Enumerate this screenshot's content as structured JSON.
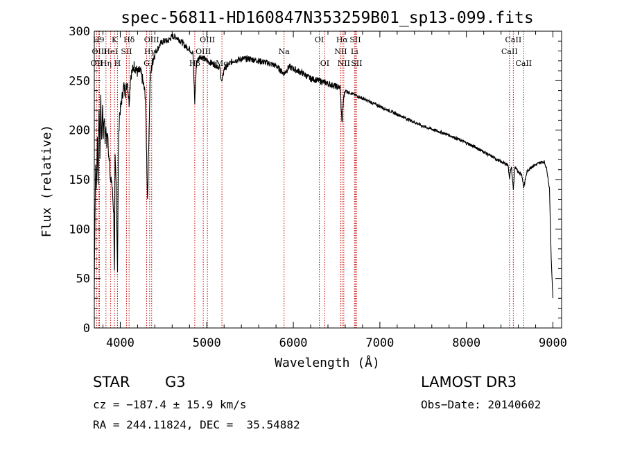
{
  "chart_data": {
    "type": "line",
    "title": "spec-56811-HD160847N353259B01_sp13-099.fits",
    "xlabel": "Wavelength (Å)",
    "ylabel": "Flux (relative)",
    "xlim": [
      3700,
      9100
    ],
    "ylim": [
      0,
      300
    ],
    "xticks": [
      4000,
      5000,
      6000,
      7000,
      8000,
      9000
    ],
    "yticks": [
      0,
      50,
      100,
      150,
      200,
      250,
      300
    ],
    "grid": false,
    "series": [
      {
        "name": "flux",
        "x": [
          3700,
          3705,
          3715,
          3725,
          3735,
          3745,
          3755,
          3765,
          3775,
          3785,
          3795,
          3805,
          3815,
          3825,
          3835,
          3845,
          3855,
          3865,
          3875,
          3889,
          3900,
          3915,
          3925,
          3933,
          3940,
          3955,
          3968,
          3980,
          3990,
          4000,
          4020,
          4040,
          4060,
          4080,
          4102,
          4120,
          4140,
          4160,
          4180,
          4200,
          4230,
          4260,
          4290,
          4305,
          4315,
          4330,
          4345,
          4360,
          4380,
          4400,
          4430,
          4470,
          4500,
          4550,
          4600,
          4650,
          4700,
          4750,
          4800,
          4840,
          4861,
          4880,
          4920,
          4960,
          5000,
          5050,
          5100,
          5150,
          5175,
          5200,
          5300,
          5400,
          5500,
          5600,
          5700,
          5800,
          5893,
          5950,
          6000,
          6100,
          6200,
          6300,
          6400,
          6500,
          6540,
          6563,
          6580,
          6600,
          6700,
          6800,
          6900,
          7000,
          7100,
          7200,
          7300,
          7400,
          7500,
          7600,
          7700,
          7800,
          7900,
          8000,
          8100,
          8200,
          8300,
          8400,
          8480,
          8498,
          8520,
          8542,
          8560,
          8600,
          8640,
          8662,
          8700,
          8750,
          8800,
          8850,
          8880,
          8900,
          8930,
          8960,
          8980,
          9000
        ],
        "y": [
          40,
          90,
          165,
          140,
          190,
          145,
          225,
          175,
          230,
          185,
          225,
          195,
          215,
          190,
          205,
          185,
          200,
          170,
          175,
          145,
          150,
          130,
          115,
          55,
          170,
          140,
          60,
          185,
          215,
          220,
          232,
          245,
          238,
          250,
          228,
          255,
          260,
          265,
          262,
          258,
          260,
          250,
          235,
          175,
          130,
          190,
          250,
          262,
          272,
          278,
          282,
          288,
          290,
          290,
          295,
          294,
          290,
          285,
          282,
          278,
          228,
          268,
          275,
          273,
          270,
          268,
          266,
          263,
          248,
          262,
          270,
          272,
          272,
          270,
          268,
          265,
          257,
          264,
          262,
          258,
          252,
          250,
          247,
          244,
          243,
          206,
          232,
          240,
          236,
          232,
          228,
          224,
          220,
          216,
          212,
          208,
          204,
          201,
          198,
          195,
          191,
          187,
          183,
          178,
          173,
          168,
          165,
          152,
          163,
          140,
          162,
          158,
          155,
          142,
          158,
          163,
          165,
          167,
          168,
          168,
          160,
          140,
          70,
          30
        ]
      }
    ],
    "line_markers": [
      {
        "label": "OII",
        "x": 3727,
        "row": 3
      },
      {
        "label": "H9",
        "x": 3750,
        "row": 1
      },
      {
        "label": "OIII",
        "x": 3760,
        "row": 2
      },
      {
        "label": "Hη",
        "x": 3835,
        "row": 3
      },
      {
        "label": "HeI",
        "x": 3889,
        "row": 2
      },
      {
        "label": "K",
        "x": 3933,
        "row": 1
      },
      {
        "label": "H",
        "x": 3968,
        "row": 3
      },
      {
        "label": "SII",
        "x": 4072,
        "row": 2
      },
      {
        "label": "Hδ",
        "x": 4102,
        "row": 1
      },
      {
        "label": "G",
        "x": 4305,
        "row": 3
      },
      {
        "label": "Hγ",
        "x": 4340,
        "row": 2
      },
      {
        "label": "OIII",
        "x": 4363,
        "row": 1
      },
      {
        "label": "Hβ",
        "x": 4861,
        "row": 3
      },
      {
        "label": "OIII",
        "x": 4959,
        "row": 2
      },
      {
        "label": "OIII",
        "x": 5007,
        "row": 1
      },
      {
        "label": "Mg",
        "x": 5175,
        "row": 3
      },
      {
        "label": "Na",
        "x": 5893,
        "row": 2
      },
      {
        "label": "OI",
        "x": 6300,
        "row": 1
      },
      {
        "label": "OI",
        "x": 6363,
        "row": 3
      },
      {
        "label": "NII",
        "x": 6548,
        "row": 2
      },
      {
        "label": "Hα",
        "x": 6563,
        "row": 1
      },
      {
        "label": "NII",
        "x": 6583,
        "row": 3
      },
      {
        "label": "Li",
        "x": 6707,
        "row": 2
      },
      {
        "label": "SII",
        "x": 6716,
        "row": 1
      },
      {
        "label": "SII",
        "x": 6731,
        "row": 3
      },
      {
        "label": "CaII",
        "x": 8498,
        "row": 2
      },
      {
        "label": "CaII",
        "x": 8542,
        "row": 1
      },
      {
        "label": "CaII",
        "x": 8662,
        "row": 3
      }
    ]
  },
  "info": {
    "object_class": "STAR",
    "subclass": "G3",
    "survey": "LAMOST DR3",
    "cz": "cz = −187.4 ± 15.9 km/s",
    "obs_date": "Obs−Date: 20140602",
    "coords": "RA = 244.11824, DEC =  35.54882"
  },
  "colors": {
    "spectrum": "#000000",
    "marker": "#c80000",
    "axes": "#000000"
  }
}
